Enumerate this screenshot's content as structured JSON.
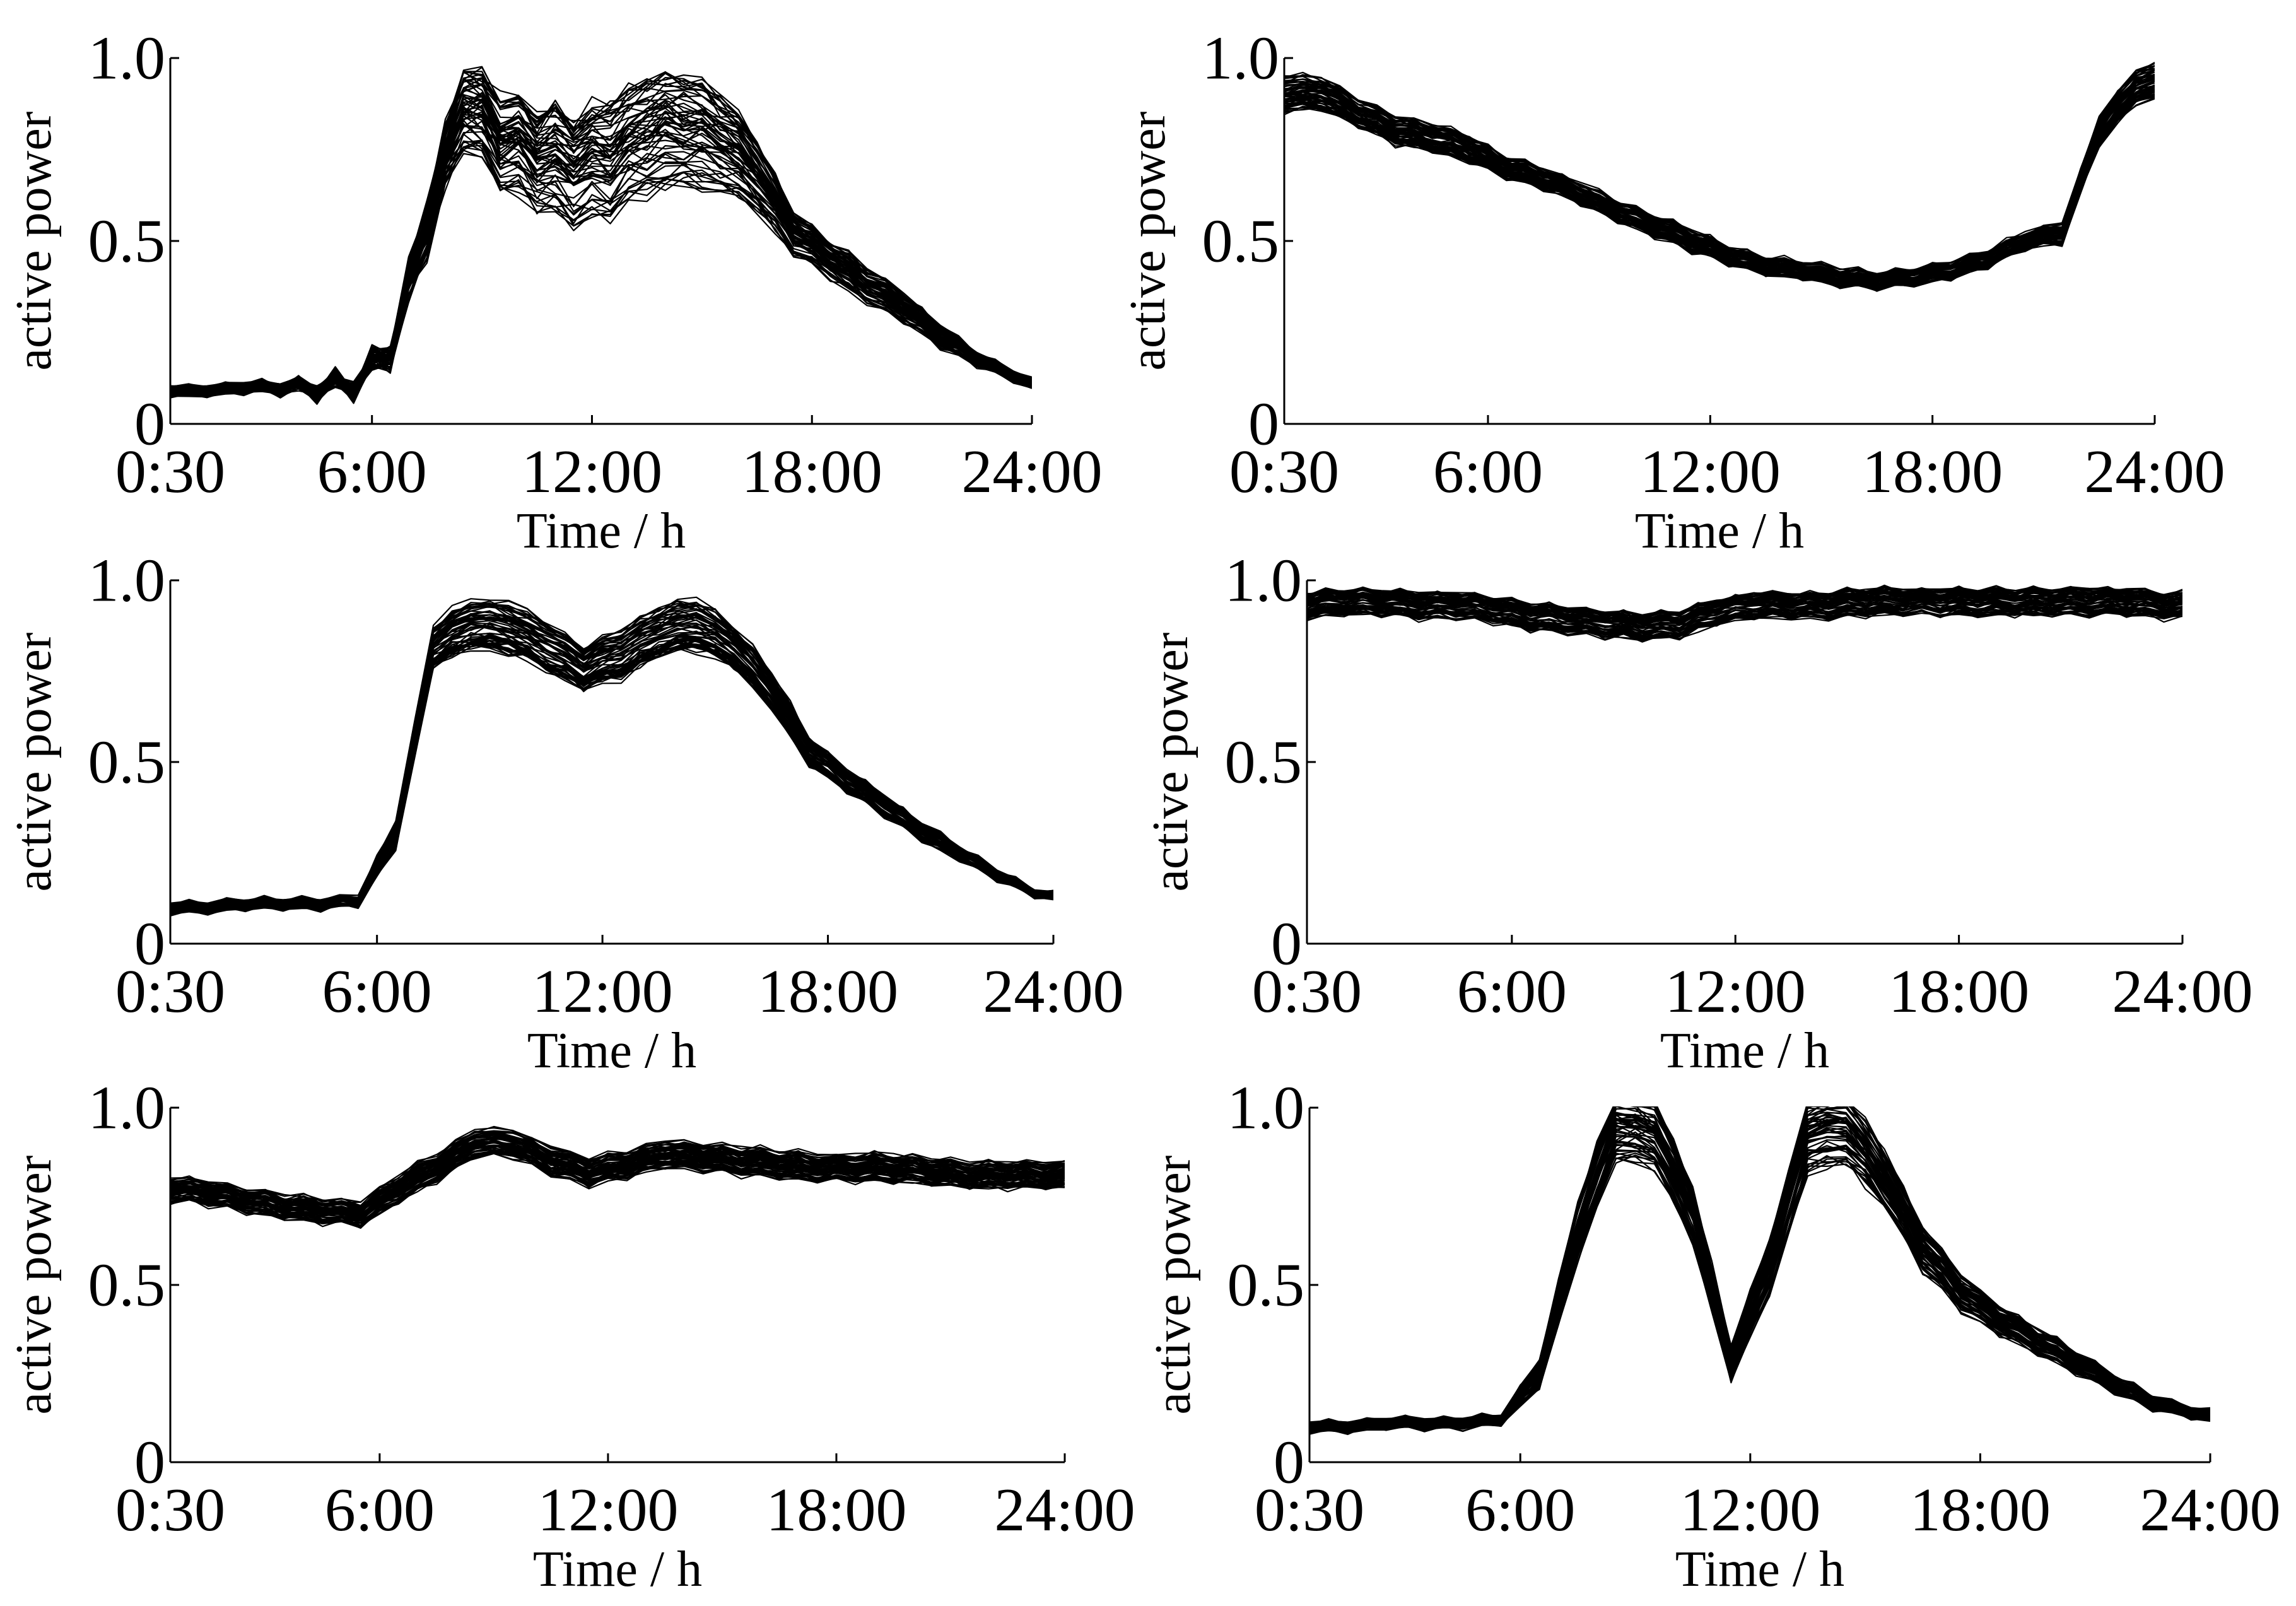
{
  "colors": {
    "line": "#000000",
    "background": "#ffffff"
  },
  "chart_data": [
    {
      "type": "line",
      "title": "",
      "xlabel": "Time / h",
      "ylabel": "active power",
      "xticks": [
        "0:30",
        "6:00",
        "12:00",
        "18:00",
        "24:00"
      ],
      "yticks": [
        "0",
        "0.5",
        "1.0"
      ],
      "xlim": [
        0.5,
        24
      ],
      "ylim": [
        0,
        1.0
      ],
      "grid": false,
      "series_count": 60,
      "x": [
        0.5,
        1.5,
        2.5,
        3.5,
        4.5,
        5.5,
        6.5,
        7.5,
        8.5,
        9.5,
        10.5,
        11.5,
        12.5,
        13.5,
        14.5,
        15.5,
        16.5,
        17.5,
        18.5,
        19.5,
        20.5,
        21.5,
        22.5,
        23.5,
        24.0
      ],
      "mean": [
        0.09,
        0.09,
        0.1,
        0.1,
        0.1,
        0.11,
        0.2,
        0.55,
        0.88,
        0.78,
        0.73,
        0.7,
        0.72,
        0.79,
        0.8,
        0.77,
        0.68,
        0.52,
        0.45,
        0.38,
        0.32,
        0.24,
        0.18,
        0.13,
        0.11
      ],
      "spread": [
        0.015,
        0.015,
        0.015,
        0.015,
        0.015,
        0.015,
        0.03,
        0.07,
        0.11,
        0.13,
        0.14,
        0.15,
        0.16,
        0.16,
        0.16,
        0.14,
        0.1,
        0.06,
        0.05,
        0.05,
        0.04,
        0.03,
        0.02,
        0.015,
        0.015
      ],
      "jitter": [
        0.005,
        0.005,
        0.01,
        0.02,
        0.04,
        0.05,
        0.05,
        0.05,
        0.05,
        0.04,
        0.04,
        0.03,
        0.02,
        0.02,
        0.015,
        0.015,
        0.01,
        0.01,
        0.01,
        0.01,
        0.01,
        0.01,
        0.01,
        0.005,
        0.005
      ]
    },
    {
      "type": "line",
      "title": "",
      "xlabel": "Time / h",
      "ylabel": "active power",
      "xticks": [
        "0:30",
        "6:00",
        "12:00",
        "18:00",
        "24:00"
      ],
      "yticks": [
        "0",
        "0.5",
        "1.0"
      ],
      "xlim": [
        0.5,
        24
      ],
      "ylim": [
        0,
        1.0
      ],
      "grid": false,
      "series_count": 60,
      "x": [
        0.5,
        1.5,
        2.5,
        3.5,
        4.5,
        5.5,
        6.5,
        7.5,
        8.5,
        9.5,
        10.5,
        11.5,
        12.5,
        13.5,
        14.5,
        15.5,
        16.5,
        17.5,
        18.5,
        19.5,
        20.5,
        21.5,
        22.5,
        23.5,
        24.0
      ],
      "mean": [
        0.9,
        0.9,
        0.85,
        0.8,
        0.78,
        0.75,
        0.7,
        0.67,
        0.63,
        0.58,
        0.54,
        0.5,
        0.46,
        0.43,
        0.42,
        0.4,
        0.39,
        0.4,
        0.42,
        0.45,
        0.5,
        0.52,
        0.8,
        0.92,
        0.93
      ],
      "spread": [
        0.05,
        0.05,
        0.04,
        0.04,
        0.04,
        0.04,
        0.03,
        0.03,
        0.03,
        0.03,
        0.03,
        0.03,
        0.025,
        0.025,
        0.025,
        0.025,
        0.025,
        0.025,
        0.025,
        0.025,
        0.025,
        0.03,
        0.04,
        0.05,
        0.05
      ],
      "jitter": [
        0.01,
        0.01,
        0.01,
        0.01,
        0.01,
        0.01,
        0.01,
        0.01,
        0.01,
        0.01,
        0.01,
        0.01,
        0.01,
        0.01,
        0.01,
        0.01,
        0.01,
        0.01,
        0.01,
        0.01,
        0.01,
        0.01,
        0.01,
        0.01,
        0.01
      ]
    },
    {
      "type": "line",
      "title": "",
      "xlabel": "Time / h",
      "ylabel": "active power",
      "xticks": [
        "0:30",
        "6:00",
        "12:00",
        "18:00",
        "24:00"
      ],
      "yticks": [
        "0",
        "0.5",
        "1.0"
      ],
      "xlim": [
        0.5,
        24
      ],
      "ylim": [
        0,
        1.0
      ],
      "grid": false,
      "series_count": 60,
      "x": [
        0.5,
        1.5,
        2.5,
        3.5,
        4.5,
        5.5,
        6.5,
        7.5,
        8.5,
        9.5,
        10.5,
        11.5,
        12.5,
        13.5,
        14.5,
        15.5,
        16.5,
        17.5,
        18.5,
        19.5,
        20.5,
        21.5,
        22.5,
        23.5,
        24.0
      ],
      "mean": [
        0.1,
        0.1,
        0.11,
        0.11,
        0.11,
        0.12,
        0.3,
        0.82,
        0.88,
        0.87,
        0.82,
        0.76,
        0.8,
        0.86,
        0.88,
        0.82,
        0.7,
        0.53,
        0.45,
        0.38,
        0.31,
        0.25,
        0.19,
        0.14,
        0.13
      ],
      "spread": [
        0.015,
        0.015,
        0.015,
        0.015,
        0.015,
        0.015,
        0.04,
        0.06,
        0.07,
        0.07,
        0.07,
        0.06,
        0.07,
        0.07,
        0.07,
        0.06,
        0.05,
        0.04,
        0.03,
        0.03,
        0.025,
        0.02,
        0.015,
        0.01,
        0.01
      ],
      "jitter": [
        0.01,
        0.01,
        0.01,
        0.01,
        0.01,
        0.01,
        0.01,
        0.01,
        0.01,
        0.01,
        0.01,
        0.01,
        0.01,
        0.01,
        0.01,
        0.01,
        0.01,
        0.01,
        0.01,
        0.01,
        0.01,
        0.01,
        0.01,
        0.01,
        0.01
      ]
    },
    {
      "type": "line",
      "title": "",
      "xlabel": "Time / h",
      "ylabel": "active power",
      "xticks": [
        "0:30",
        "6:00",
        "12:00",
        "18:00",
        "24:00"
      ],
      "yticks": [
        "0",
        "0.5",
        "1.0"
      ],
      "xlim": [
        0.5,
        24
      ],
      "ylim": [
        0,
        1.0
      ],
      "grid": false,
      "series_count": 60,
      "x": [
        0.5,
        1.5,
        2.5,
        3.5,
        4.5,
        5.5,
        6.5,
        7.5,
        8.5,
        9.5,
        10.5,
        11.5,
        12.5,
        13.5,
        14.5,
        15.5,
        16.5,
        17.5,
        18.5,
        19.5,
        20.5,
        21.5,
        22.5,
        23.5,
        24.0
      ],
      "mean": [
        0.93,
        0.94,
        0.94,
        0.93,
        0.93,
        0.92,
        0.9,
        0.89,
        0.88,
        0.87,
        0.88,
        0.91,
        0.93,
        0.93,
        0.93,
        0.94,
        0.94,
        0.94,
        0.94,
        0.94,
        0.94,
        0.94,
        0.94,
        0.93,
        0.93
      ],
      "spread": [
        0.035,
        0.035,
        0.035,
        0.035,
        0.035,
        0.035,
        0.035,
        0.035,
        0.035,
        0.035,
        0.035,
        0.035,
        0.035,
        0.035,
        0.035,
        0.035,
        0.035,
        0.035,
        0.035,
        0.035,
        0.035,
        0.035,
        0.035,
        0.035,
        0.035
      ],
      "jitter": [
        0.01,
        0.01,
        0.01,
        0.01,
        0.01,
        0.01,
        0.01,
        0.01,
        0.01,
        0.01,
        0.01,
        0.01,
        0.01,
        0.01,
        0.01,
        0.01,
        0.01,
        0.01,
        0.01,
        0.01,
        0.01,
        0.01,
        0.01,
        0.01,
        0.01
      ]
    },
    {
      "type": "line",
      "title": "",
      "xlabel": "Time / h",
      "ylabel": "active power",
      "xticks": [
        "0:30",
        "6:00",
        "12:00",
        "18:00",
        "24:00"
      ],
      "yticks": [
        "0",
        "0.5",
        "1.0"
      ],
      "xlim": [
        0.5,
        24
      ],
      "ylim": [
        0,
        1.0
      ],
      "grid": false,
      "series_count": 60,
      "x": [
        0.5,
        1.5,
        2.5,
        3.5,
        4.5,
        5.5,
        6.5,
        7.5,
        8.5,
        9.5,
        10.5,
        11.5,
        12.5,
        13.5,
        14.5,
        15.5,
        16.5,
        17.5,
        18.5,
        19.5,
        20.5,
        21.5,
        22.5,
        23.5,
        24.0
      ],
      "mean": [
        0.77,
        0.76,
        0.74,
        0.72,
        0.71,
        0.7,
        0.77,
        0.83,
        0.9,
        0.9,
        0.85,
        0.82,
        0.84,
        0.87,
        0.86,
        0.85,
        0.84,
        0.83,
        0.83,
        0.83,
        0.82,
        0.81,
        0.81,
        0.81,
        0.81
      ],
      "spread": [
        0.035,
        0.035,
        0.035,
        0.035,
        0.035,
        0.035,
        0.04,
        0.04,
        0.04,
        0.04,
        0.04,
        0.04,
        0.04,
        0.04,
        0.04,
        0.04,
        0.04,
        0.04,
        0.04,
        0.04,
        0.04,
        0.04,
        0.04,
        0.04,
        0.04
      ],
      "jitter": [
        0.01,
        0.01,
        0.01,
        0.01,
        0.01,
        0.01,
        0.01,
        0.01,
        0.01,
        0.01,
        0.01,
        0.01,
        0.01,
        0.01,
        0.01,
        0.01,
        0.01,
        0.01,
        0.01,
        0.01,
        0.01,
        0.01,
        0.01,
        0.01,
        0.01
      ]
    },
    {
      "type": "line",
      "title": "",
      "xlabel": "Time / h",
      "ylabel": "active power",
      "xticks": [
        "0:30",
        "6:00",
        "12:00",
        "18:00",
        "24:00"
      ],
      "yticks": [
        "0",
        "0.5",
        "1.0"
      ],
      "xlim": [
        0.5,
        24
      ],
      "ylim": [
        0,
        1.0
      ],
      "grid": false,
      "series_count": 60,
      "x": [
        0.5,
        1.5,
        2.5,
        3.5,
        4.5,
        5.5,
        6.5,
        7.5,
        8.5,
        9.5,
        10.5,
        11.5,
        12.5,
        13.5,
        14.5,
        15.5,
        16.5,
        17.5,
        18.5,
        19.5,
        20.5,
        21.5,
        22.5,
        23.5,
        24.0
      ],
      "mean": [
        0.1,
        0.1,
        0.11,
        0.11,
        0.11,
        0.12,
        0.25,
        0.65,
        0.95,
        0.93,
        0.7,
        0.28,
        0.55,
        0.92,
        0.94,
        0.8,
        0.6,
        0.48,
        0.4,
        0.34,
        0.28,
        0.22,
        0.17,
        0.14,
        0.13
      ],
      "spread": [
        0.015,
        0.015,
        0.015,
        0.015,
        0.015,
        0.015,
        0.04,
        0.08,
        0.1,
        0.1,
        0.08,
        0.05,
        0.08,
        0.1,
        0.1,
        0.08,
        0.06,
        0.05,
        0.04,
        0.035,
        0.03,
        0.025,
        0.02,
        0.015,
        0.015
      ],
      "jitter": [
        0.01,
        0.01,
        0.01,
        0.01,
        0.01,
        0.01,
        0.01,
        0.01,
        0.01,
        0.01,
        0.01,
        0.01,
        0.01,
        0.01,
        0.01,
        0.01,
        0.01,
        0.01,
        0.01,
        0.01,
        0.01,
        0.01,
        0.01,
        0.01,
        0.01
      ]
    }
  ]
}
